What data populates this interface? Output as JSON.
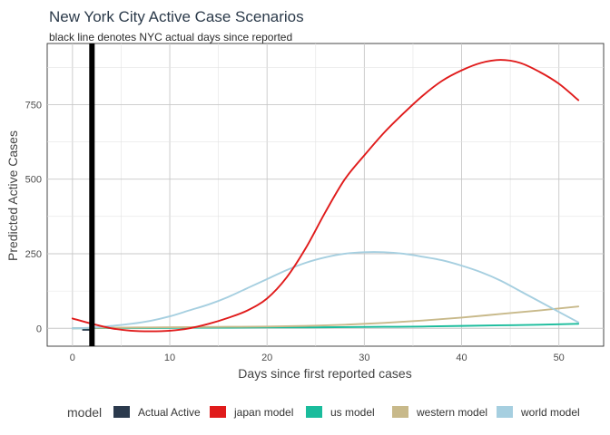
{
  "chart_data": {
    "type": "line",
    "title": "New York City Active Case Scenarios",
    "subtitle": "black line denotes NYC actual days since reported",
    "xlabel": "Days since first reported cases",
    "ylabel": "Predicted Active Cases",
    "xlim": [
      -2.6,
      54.6
    ],
    "ylim": [
      -60,
      955
    ],
    "xticks": [
      0,
      10,
      20,
      30,
      40,
      50
    ],
    "yticks": [
      0,
      250,
      500,
      750
    ],
    "grid": true,
    "vline": {
      "x": 2,
      "color": "#000000"
    },
    "legend": {
      "title": "model",
      "position": "bottom",
      "entries": [
        {
          "label": "Actual Active",
          "color": "#2b3a4d"
        },
        {
          "label": "japan model",
          "color": "#e01b1b"
        },
        {
          "label": "us model",
          "color": "#1abc9c"
        },
        {
          "label": "western model",
          "color": "#c8b98a"
        },
        {
          "label": "world model",
          "color": "#a6cfe0"
        }
      ]
    },
    "series": [
      {
        "name": "Actual Active",
        "color": "#2b3a4d",
        "kind": "bar",
        "x": [
          1.5
        ],
        "values": [
          -8
        ]
      },
      {
        "name": "japan model",
        "color": "#e01b1b",
        "x": [
          0,
          2,
          4,
          6,
          8,
          10,
          12,
          14,
          16,
          18,
          20,
          22,
          24,
          26,
          28,
          30,
          32,
          34,
          36,
          38,
          40,
          42,
          44,
          46,
          48,
          50,
          52
        ],
        "values": [
          33,
          15,
          0,
          -8,
          -10,
          -8,
          0,
          15,
          35,
          60,
          100,
          170,
          270,
          390,
          500,
          580,
          655,
          720,
          780,
          830,
          865,
          890,
          900,
          890,
          860,
          820,
          765
        ]
      },
      {
        "name": "us model",
        "color": "#1abc9c",
        "x": [
          0,
          4,
          8,
          12,
          16,
          20,
          24,
          28,
          32,
          36,
          40,
          44,
          48,
          52
        ],
        "values": [
          0,
          1,
          1,
          2,
          2,
          3,
          3,
          4,
          5,
          6,
          8,
          10,
          12,
          15
        ]
      },
      {
        "name": "western model",
        "color": "#c8b98a",
        "x": [
          0,
          4,
          8,
          12,
          16,
          20,
          24,
          28,
          32,
          36,
          40,
          44,
          48,
          52
        ],
        "values": [
          0,
          2,
          3,
          4,
          5,
          6,
          8,
          12,
          18,
          26,
          36,
          48,
          60,
          73
        ]
      },
      {
        "name": "world model",
        "color": "#a6cfe0",
        "x": [
          0,
          2,
          4,
          6,
          8,
          10,
          12,
          14,
          16,
          18,
          20,
          22,
          24,
          26,
          28,
          30,
          32,
          34,
          36,
          38,
          40,
          42,
          44,
          46,
          48,
          50,
          52
        ],
        "values": [
          0,
          2,
          8,
          15,
          25,
          40,
          60,
          80,
          105,
          135,
          165,
          195,
          220,
          238,
          250,
          255,
          255,
          250,
          240,
          228,
          210,
          188,
          160,
          125,
          90,
          55,
          20
        ]
      }
    ]
  }
}
